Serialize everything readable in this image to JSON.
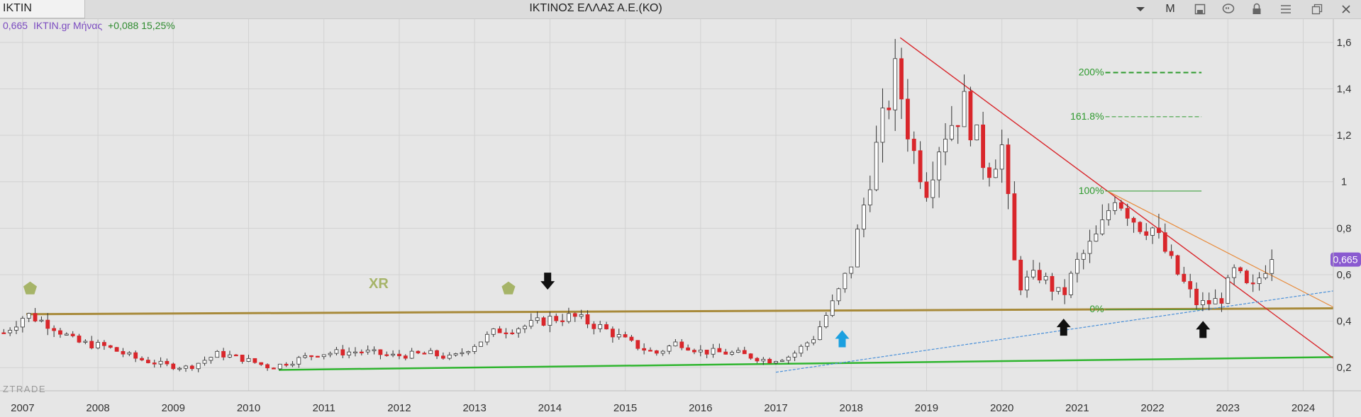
{
  "toolbar": {
    "symbol": "IKTIN",
    "title": "ΙΚΤΙΝΟΣ ΕΛΛΑΣ Α.Ε.(ΚΟ)",
    "period_button": "M",
    "icons": [
      "chevron-down-icon",
      "period-button",
      "save-icon",
      "comment-icon",
      "lock-icon",
      "menu-icon",
      "restore-window-icon",
      "close-icon"
    ]
  },
  "quote": {
    "last": "0,665",
    "symbol_period": "IKTIN.gr Μήνας",
    "change": "+0,088 15,25%"
  },
  "watermark": "ZTRADE",
  "annotation_xr": "XR",
  "colors": {
    "background": "#e6e6e6",
    "up": "#ffffff",
    "down": "#d9262b",
    "support": "#2fb52f",
    "resistance": "#a88a3a",
    "downtrend": "#d9262b",
    "uptrend": "#4a90d9",
    "price_badge": "#8a5ad0"
  },
  "chart_data": {
    "type": "candlestick",
    "period": "monthly",
    "x_range": [
      2006.7,
      2024.4
    ],
    "ylim": [
      0.1,
      1.7
    ],
    "grid": true,
    "y_ticks": [
      "0,2",
      "0,4",
      "0,6",
      "0,8",
      "1",
      "1,2",
      "1,4",
      "1,6"
    ],
    "y_tick_values": [
      0.2,
      0.4,
      0.6,
      0.8,
      1.0,
      1.2,
      1.4,
      1.6
    ],
    "x_ticks": [
      "2007",
      "2008",
      "2009",
      "2010",
      "2011",
      "2012",
      "2013",
      "2014",
      "2015",
      "2016",
      "2017",
      "2018",
      "2019",
      "2020",
      "2021",
      "2022",
      "2023",
      "2024"
    ],
    "last_price_label": "0,665",
    "last_price": 0.665,
    "anchors": [
      [
        2006.75,
        0.35
      ],
      [
        2007.05,
        0.43
      ],
      [
        2007.4,
        0.38
      ],
      [
        2007.7,
        0.31
      ],
      [
        2008.1,
        0.29
      ],
      [
        2008.5,
        0.24
      ],
      [
        2008.9,
        0.21
      ],
      [
        2009.2,
        0.2
      ],
      [
        2009.6,
        0.26
      ],
      [
        2009.9,
        0.24
      ],
      [
        2010.3,
        0.2
      ],
      [
        2010.5,
        0.22
      ],
      [
        2010.9,
        0.26
      ],
      [
        2011.5,
        0.27
      ],
      [
        2011.9,
        0.25
      ],
      [
        2012.4,
        0.26
      ],
      [
        2012.7,
        0.24
      ],
      [
        2013.0,
        0.3
      ],
      [
        2013.3,
        0.36
      ],
      [
        2013.7,
        0.38
      ],
      [
        2014.0,
        0.41
      ],
      [
        2014.3,
        0.42
      ],
      [
        2014.7,
        0.37
      ],
      [
        2015.1,
        0.3
      ],
      [
        2015.4,
        0.26
      ],
      [
        2015.7,
        0.31
      ],
      [
        2016.0,
        0.27
      ],
      [
        2016.5,
        0.26
      ],
      [
        2016.9,
        0.23
      ],
      [
        2017.2,
        0.25
      ],
      [
        2017.5,
        0.33
      ],
      [
        2017.8,
        0.5
      ],
      [
        2018.0,
        0.65
      ],
      [
        2018.3,
        1.1
      ],
      [
        2018.6,
        1.48
      ],
      [
        2018.8,
        1.15
      ],
      [
        2019.0,
        0.98
      ],
      [
        2019.2,
        1.2
      ],
      [
        2019.5,
        1.33
      ],
      [
        2019.8,
        1.05
      ],
      [
        2020.0,
        1.15
      ],
      [
        2020.2,
        0.55
      ],
      [
        2020.5,
        0.6
      ],
      [
        2020.8,
        0.5
      ],
      [
        2021.0,
        0.65
      ],
      [
        2021.3,
        0.78
      ],
      [
        2021.5,
        0.95
      ],
      [
        2021.8,
        0.82
      ],
      [
        2022.0,
        0.8
      ],
      [
        2022.3,
        0.62
      ],
      [
        2022.6,
        0.47
      ],
      [
        2022.9,
        0.49
      ],
      [
        2023.1,
        0.62
      ],
      [
        2023.3,
        0.52
      ],
      [
        2023.55,
        0.665
      ]
    ],
    "lines": [
      {
        "name": "horizontal-resistance",
        "color": "#a88a3a",
        "width": 3,
        "points": [
          [
            2007.05,
            0.43
          ],
          [
            2024.4,
            0.455
          ]
        ]
      },
      {
        "name": "long-term-support",
        "color": "#2fb52f",
        "width": 2.5,
        "points": [
          [
            2010.4,
            0.19
          ],
          [
            2024.4,
            0.245
          ]
        ]
      },
      {
        "name": "downtrend-line",
        "color": "#d9262b",
        "width": 1.4,
        "points": [
          [
            2018.65,
            1.62
          ],
          [
            2024.4,
            0.24
          ]
        ]
      },
      {
        "name": "orange-trend-line",
        "color": "#e88a3a",
        "width": 1.2,
        "points": [
          [
            2021.4,
            0.96
          ],
          [
            2024.4,
            0.46
          ]
        ]
      },
      {
        "name": "uptrend-line",
        "color": "#4a90d9",
        "width": 1.2,
        "dash": "4 2",
        "points": [
          [
            2017.0,
            0.18
          ],
          [
            2024.4,
            0.53
          ]
        ]
      }
    ],
    "fibonacci": [
      {
        "label": "200%",
        "value": 1.47,
        "x_from": 2020.95,
        "x_to": 2022.65,
        "dash": "7 4",
        "width": 2
      },
      {
        "label": "161.8%",
        "value": 1.28,
        "x_from": 2020.95,
        "x_to": 2022.65,
        "dash": "6 3",
        "width": 1
      },
      {
        "label": "100%",
        "value": 0.96,
        "x_from": 2020.95,
        "x_to": 2022.65,
        "dash": "",
        "width": 1
      },
      {
        "label": "0%",
        "value": 0.45,
        "x_from": 2020.95,
        "x_to": 2022.65,
        "dash": "",
        "width": 1
      }
    ],
    "arrows": [
      {
        "name": "black-down-arrow",
        "x": 2013.97,
        "y": 0.56,
        "dir": "down",
        "color": "#111111"
      },
      {
        "name": "blue-up-arrow",
        "x": 2017.88,
        "y": 0.33,
        "dir": "up",
        "color": "#1ca0e0"
      },
      {
        "name": "black-up-arrow",
        "x": 2020.82,
        "y": 0.38,
        "dir": "up",
        "color": "#111111"
      },
      {
        "name": "black-up-arrow",
        "x": 2022.67,
        "y": 0.37,
        "dir": "up",
        "color": "#111111"
      }
    ],
    "pentagons": [
      {
        "x": 2007.1,
        "y": 0.54
      },
      {
        "x": 2013.45,
        "y": 0.54
      }
    ]
  }
}
